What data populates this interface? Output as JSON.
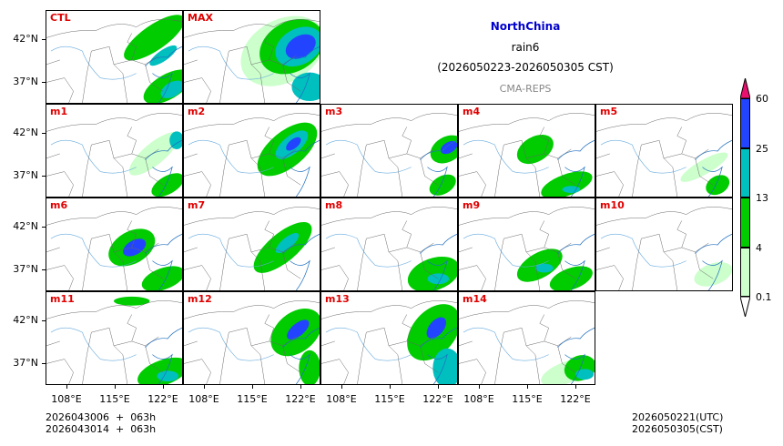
{
  "header": {
    "region": "NorthChina",
    "variable": "rain6",
    "period": "(2026050223-2026050305 CST)",
    "model": "CMA-REPS",
    "region_color": "#0000cc"
  },
  "panels": [
    {
      "label": "CTL"
    },
    {
      "label": "MAX"
    },
    {
      "label": "m1"
    },
    {
      "label": "m2"
    },
    {
      "label": "m3"
    },
    {
      "label": "m4"
    },
    {
      "label": "m5"
    },
    {
      "label": "m6"
    },
    {
      "label": "m7"
    },
    {
      "label": "m8"
    },
    {
      "label": "m9"
    },
    {
      "label": "m10"
    },
    {
      "label": "m11"
    },
    {
      "label": "m12"
    },
    {
      "label": "m13"
    },
    {
      "label": "m14"
    }
  ],
  "axes": {
    "lat_ticks": [
      "42°N",
      "37°N"
    ],
    "lon_ticks": [
      "108°E",
      "115°E",
      "122°E"
    ]
  },
  "colorbar": {
    "levels": [
      "0.1",
      "4",
      "13",
      "25",
      "60"
    ],
    "colors": [
      "#ccffcc",
      "#00cc00",
      "#00bfbf",
      "#2244ff",
      "#e8106e"
    ],
    "under_color": "#ffffff"
  },
  "footer": {
    "init_line1": "2026043006  +  063h",
    "init_line2": "2026043014  +  063h",
    "valid_utc": "2026050221(UTC)",
    "valid_cst": "2026050305(CST)"
  }
}
